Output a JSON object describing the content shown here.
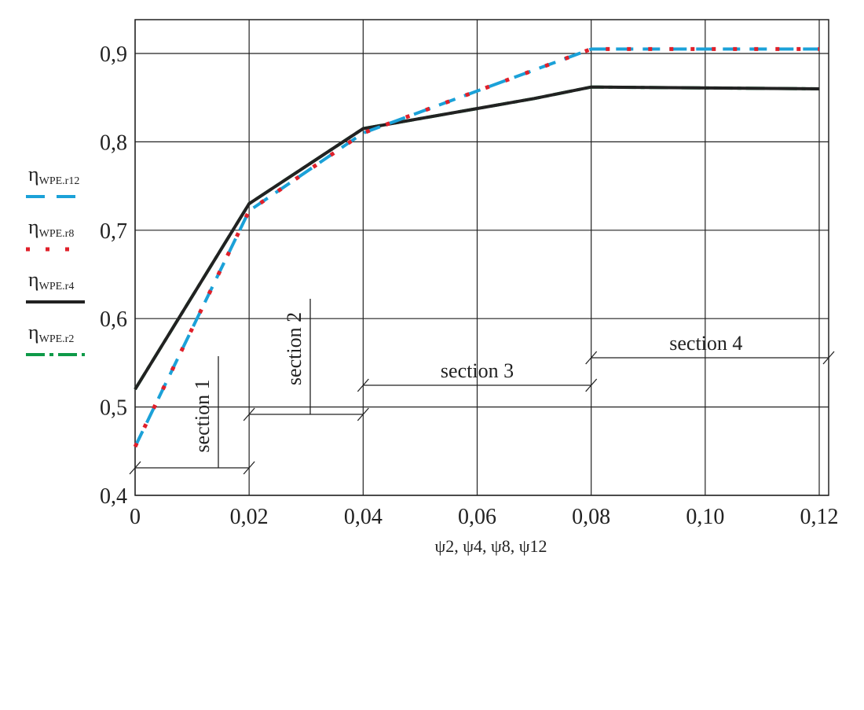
{
  "chart_data": {
    "type": "line",
    "title": "",
    "xlabel": "ψ2, ψ4, ψ8, ψ12",
    "xlabel_parts": [
      [
        "ψ",
        "2"
      ],
      [
        "ψ",
        "4"
      ],
      [
        "ψ",
        "8"
      ],
      [
        "ψ",
        "12"
      ]
    ],
    "ylabel": "",
    "xlim": [
      0,
      0.12
    ],
    "ylim": [
      0.4,
      0.94
    ],
    "grid": true,
    "legend_placement": "left-outside",
    "x_ticks": [
      0,
      0.02,
      0.04,
      0.06,
      0.08,
      0.1,
      0.12
    ],
    "x_tick_labels": [
      "0",
      "0,02",
      "0,04",
      "0,06",
      "0,08",
      "0,10",
      "0,12"
    ],
    "y_ticks": [
      0.4,
      0.5,
      0.6,
      0.7,
      0.8,
      0.9
    ],
    "y_tick_labels": [
      "0,4",
      "0,5",
      "0,6",
      "0,7",
      "0,8",
      "0,9"
    ],
    "series": [
      {
        "name": "ηWPE.r12",
        "sym": "η",
        "sub": "WPE.r12",
        "color": "#1ba1d8",
        "dash": "22 12",
        "width": 4,
        "x": [
          0,
          0.02,
          0.04,
          0.08,
          0.12
        ],
        "y": [
          0.455,
          0.722,
          0.81,
          0.905,
          0.905
        ]
      },
      {
        "name": "ηWPE.r8",
        "sym": "η",
        "sub": "WPE.r8",
        "color": "#e0202a",
        "dash": "5 22",
        "width": 5,
        "x": [
          0,
          0.02,
          0.04,
          0.08,
          0.12
        ],
        "y": [
          0.455,
          0.722,
          0.81,
          0.905,
          0.905
        ]
      },
      {
        "name": "ηWPE.r4",
        "sym": "η",
        "sub": "WPE.r4",
        "color": "#222222",
        "dash": "",
        "width": 4,
        "x": [
          0,
          0.02,
          0.04,
          0.07,
          0.08,
          0.12
        ],
        "y": [
          0.52,
          0.73,
          0.815,
          0.849,
          0.862,
          0.86
        ]
      },
      {
        "name": "ηWPE.r2",
        "sym": "η",
        "sub": "WPE.r2",
        "color": "#0e9a48",
        "dash": "24 6 5 6",
        "width": 4,
        "x": [
          0,
          0.02,
          0.04,
          0.07,
          0.08,
          0.12
        ],
        "y": [
          0.52,
          0.73,
          0.815,
          0.849,
          0.862,
          0.86
        ]
      }
    ],
    "annotations": [
      {
        "text": "section 1",
        "x_range": [
          0,
          0.02
        ],
        "orientation": "vertical"
      },
      {
        "text": "section 2",
        "x_range": [
          0.02,
          0.04
        ],
        "orientation": "vertical"
      },
      {
        "text": "section 3",
        "x_range": [
          0.04,
          0.08
        ],
        "orientation": "horizontal"
      },
      {
        "text": "section 4",
        "x_range": [
          0.08,
          0.122
        ],
        "orientation": "horizontal"
      }
    ]
  }
}
